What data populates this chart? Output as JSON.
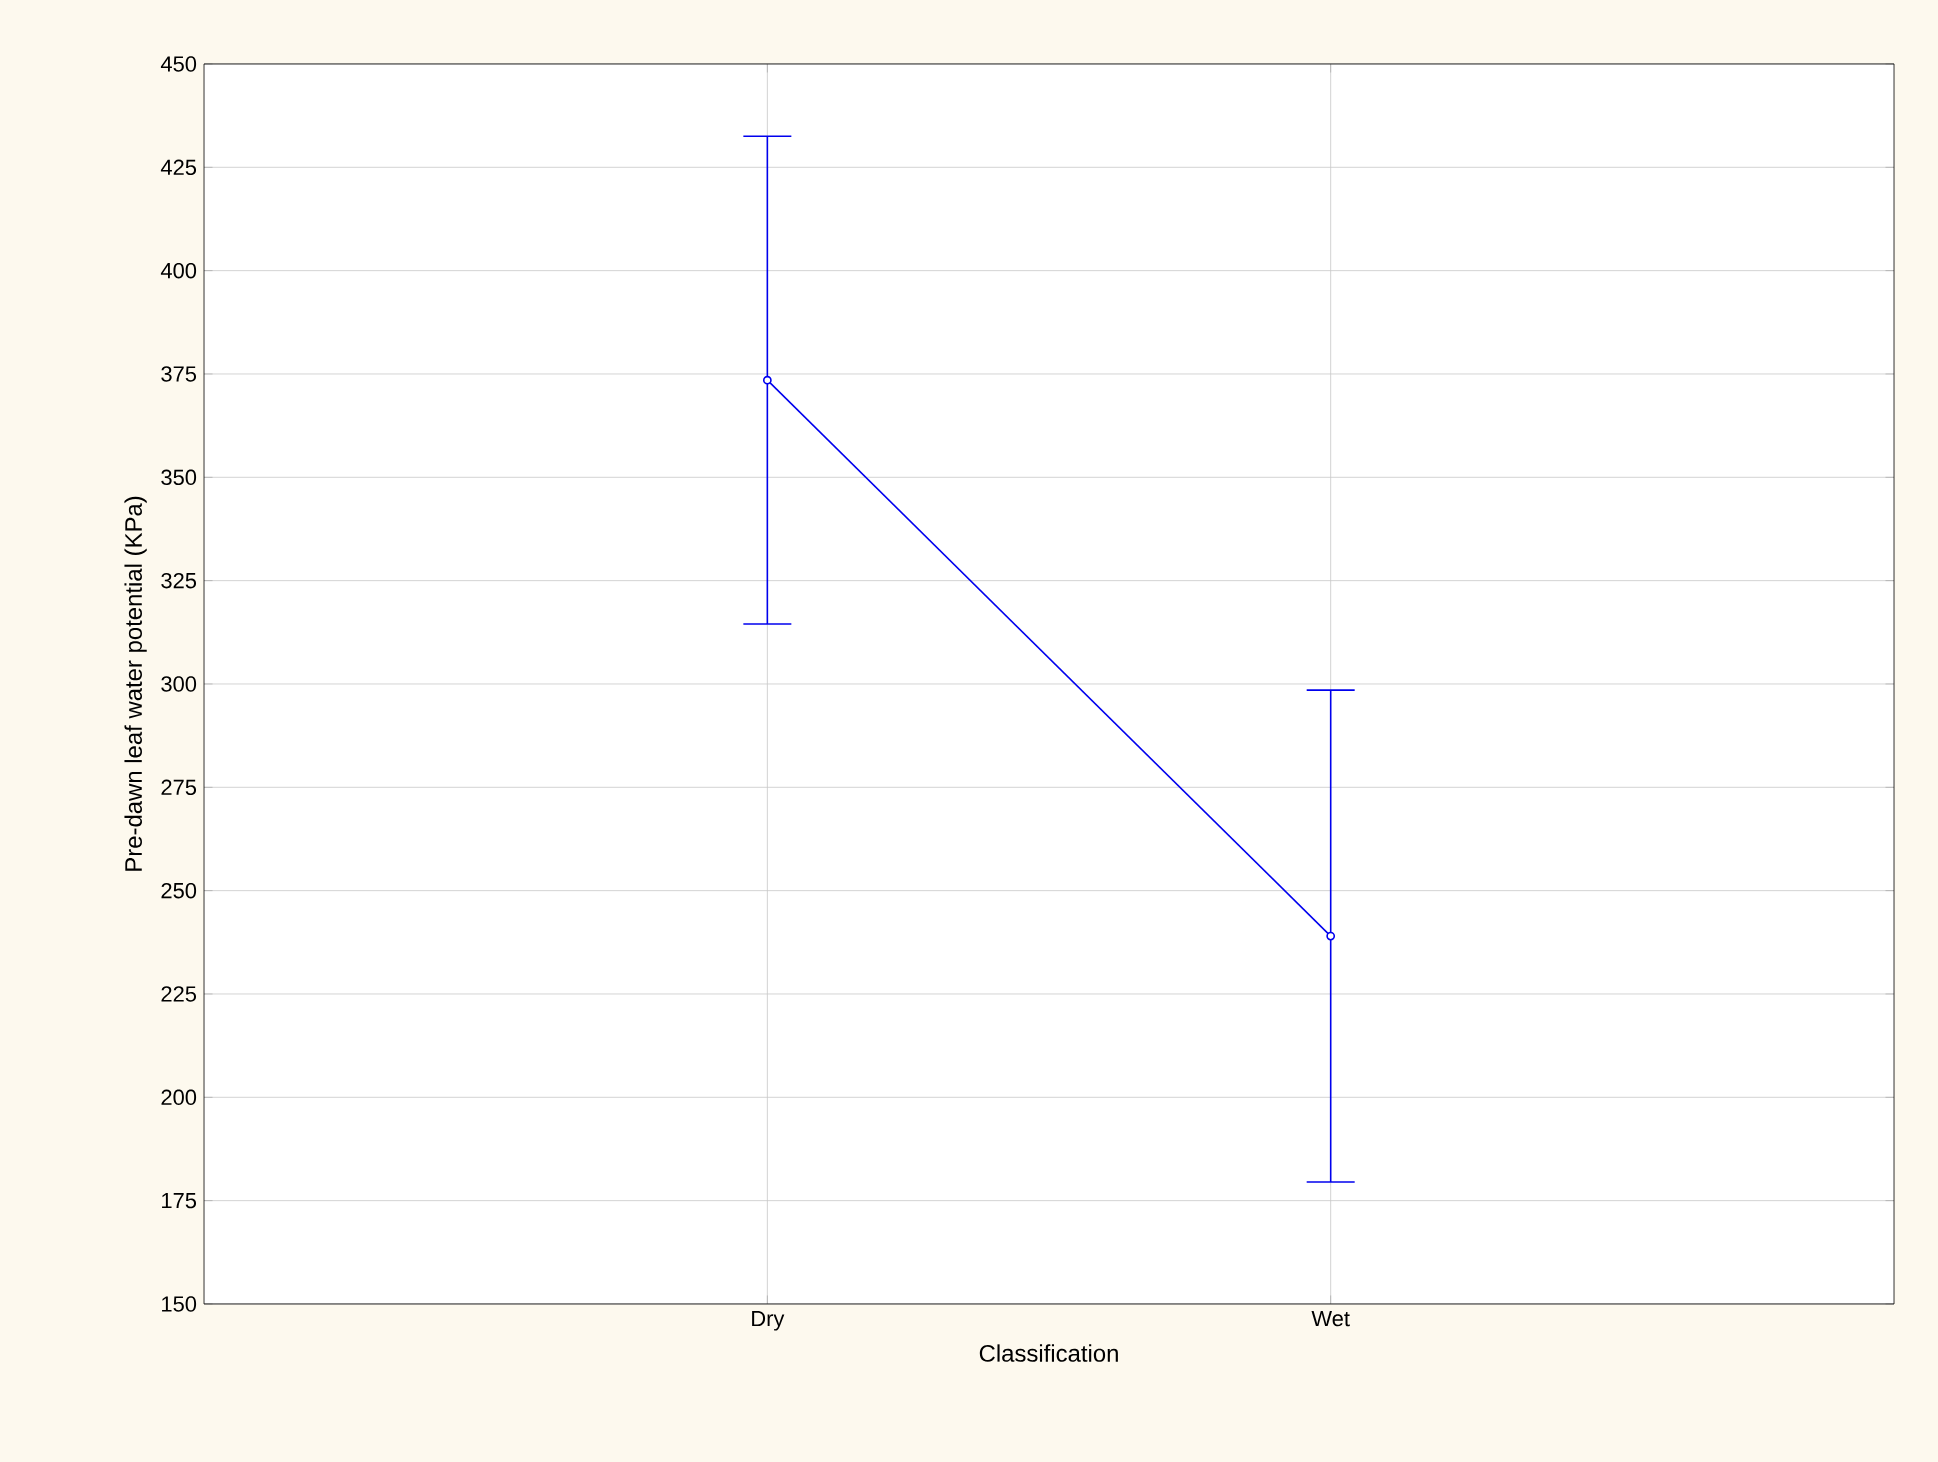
{
  "chart_data": {
    "type": "line",
    "xlabel": "Classification",
    "ylabel": "Pre-dawn leaf water potential (KPa)",
    "categories": [
      "Dry",
      "Wet"
    ],
    "series": [
      {
        "color": "#0000ee",
        "values": [
          373.5,
          239
        ],
        "errors": [
          [
            314.5,
            432.5
          ],
          [
            179.5,
            298.5
          ]
        ]
      }
    ],
    "ylim": [
      150,
      450
    ],
    "yticks": [
      150,
      175,
      200,
      225,
      250,
      275,
      300,
      325,
      350,
      375,
      400,
      425,
      450
    ],
    "grid": true,
    "marker": "circle",
    "line_style": "solid"
  }
}
